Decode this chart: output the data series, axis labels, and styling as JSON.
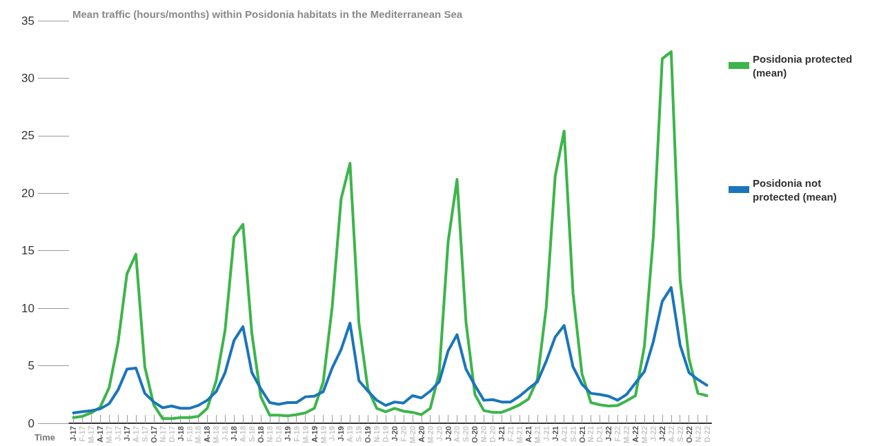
{
  "chart_data": {
    "type": "line",
    "title": "Mean traffic (hours/months) within Posidonia habitats in the Mediterranean Sea",
    "xlabel": "Time",
    "categories": [
      "J-17",
      "F-17",
      "M-17",
      "A-17",
      "M-17",
      "J-17",
      "J-17",
      "A-17",
      "S-17",
      "O-17",
      "N-17",
      "D-17",
      "J-18",
      "F-18",
      "M-18",
      "A-18",
      "M-18",
      "J-18",
      "J-18",
      "A-18",
      "S-18",
      "O-18",
      "N-18",
      "D-18",
      "J-19",
      "F-19",
      "M-19",
      "A-19",
      "M-19",
      "J-19",
      "J-19",
      "A-19",
      "S-19",
      "O-19",
      "N-19",
      "D-19",
      "J-20",
      "F-20",
      "M-20",
      "A-20",
      "M-20",
      "J-20",
      "J-20",
      "A-20",
      "S-20",
      "O-20",
      "N-20",
      "D-20",
      "J-21",
      "F-21",
      "M-21",
      "A-21",
      "M-21",
      "J-21",
      "J-21",
      "A-21",
      "S-21",
      "O-21",
      "N-21",
      "D-21",
      "J-22",
      "F-22",
      "M-22",
      "A-22",
      "M-22",
      "J-22",
      "J-22",
      "A-22",
      "S-22",
      "O-22",
      "N-22",
      "D-22"
    ],
    "series": [
      {
        "name": "Posidonia protected (mean)",
        "color": "#3cb54a",
        "values": [
          0.5,
          0.6,
          0.9,
          1.4,
          3.1,
          7.0,
          13.0,
          14.7,
          4.9,
          1.6,
          0.4,
          0.4,
          0.5,
          0.5,
          0.6,
          1.3,
          3.7,
          8.1,
          16.2,
          17.3,
          7.8,
          2.3,
          0.7,
          0.7,
          0.65,
          0.75,
          0.9,
          1.3,
          3.6,
          10.1,
          19.5,
          22.6,
          8.7,
          3.0,
          1.3,
          1.0,
          1.3,
          1.05,
          0.95,
          0.75,
          1.3,
          4.4,
          15.8,
          21.2,
          8.8,
          2.5,
          1.1,
          0.95,
          0.95,
          1.25,
          1.6,
          2.1,
          3.8,
          10.1,
          21.5,
          25.4,
          11.3,
          4.3,
          1.8,
          1.6,
          1.5,
          1.55,
          1.95,
          2.4,
          6.7,
          16.2,
          31.7,
          32.3,
          12.5,
          5.6,
          2.6,
          2.4
        ]
      },
      {
        "name": "Posidonia not protected (mean)",
        "color": "#1a75bb",
        "values": [
          0.9,
          1.0,
          1.1,
          1.25,
          1.7,
          2.9,
          4.7,
          4.8,
          2.6,
          1.85,
          1.35,
          1.5,
          1.3,
          1.3,
          1.55,
          2.0,
          2.75,
          4.4,
          7.2,
          8.4,
          4.4,
          3.0,
          1.8,
          1.65,
          1.8,
          1.8,
          2.3,
          2.35,
          2.75,
          4.8,
          6.4,
          8.7,
          3.7,
          2.8,
          2.0,
          1.55,
          1.85,
          1.75,
          2.4,
          2.2,
          2.8,
          3.6,
          6.3,
          7.7,
          4.7,
          3.3,
          2.0,
          2.05,
          1.85,
          1.85,
          2.35,
          3.0,
          3.6,
          5.4,
          7.5,
          8.5,
          4.9,
          3.4,
          2.6,
          2.5,
          2.35,
          2.0,
          2.5,
          3.5,
          4.5,
          7.1,
          10.6,
          11.8,
          6.8,
          4.4,
          3.8,
          3.3
        ]
      }
    ],
    "ylim": [
      0,
      35
    ],
    "yticks": [
      0,
      5,
      10,
      15,
      20,
      25,
      30,
      35
    ],
    "grid": false,
    "legend": "right",
    "marker": "none",
    "line_style": "solid"
  }
}
